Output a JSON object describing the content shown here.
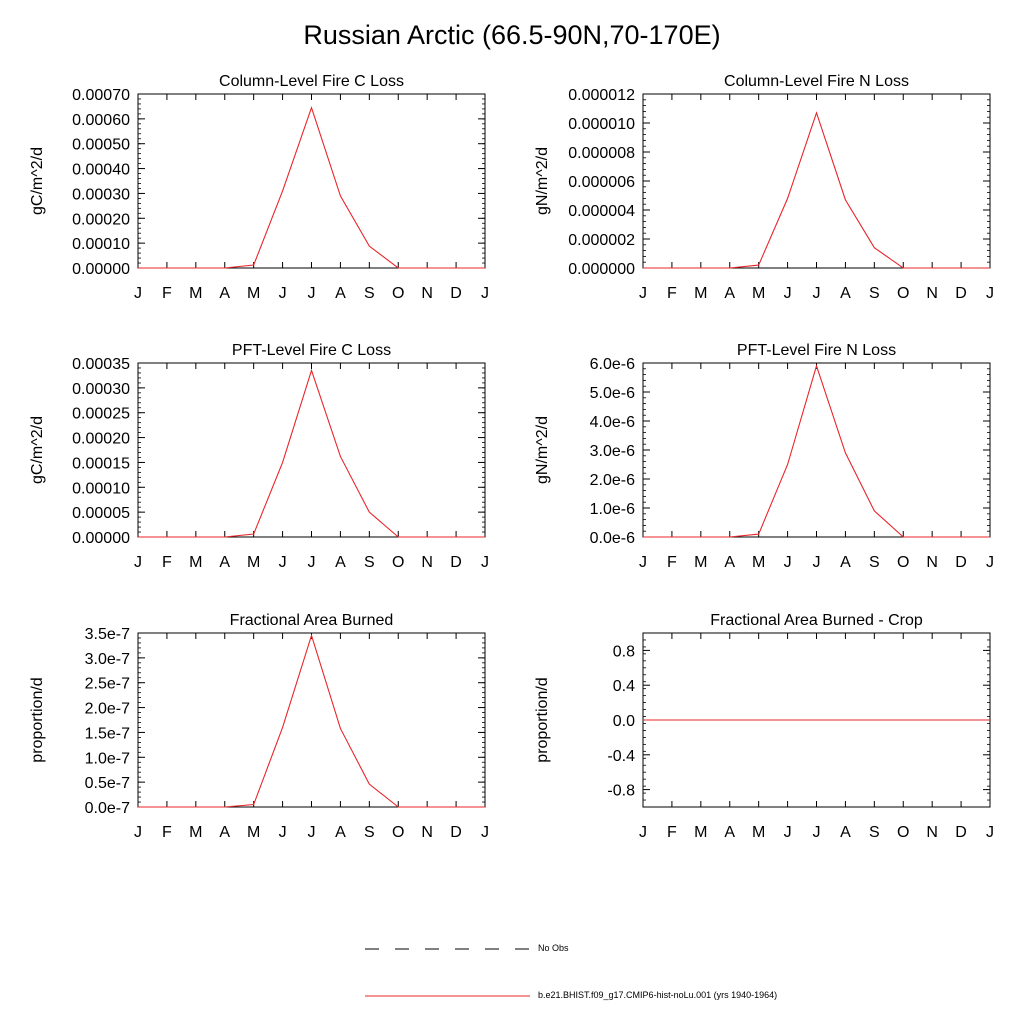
{
  "title": "Russian Arctic (66.5-90N,70-170E)",
  "colors": {
    "series": "#e8262a",
    "axis": "#000000",
    "background": "#ffffff"
  },
  "legend": {
    "entries": [
      {
        "label": "No Obs",
        "style": "dashed",
        "color": "#000000"
      },
      {
        "label": "b.e21.BHIST.f09_g17.CMIP6-hist-noLu.001 (yrs 1940-1964)",
        "style": "solid",
        "color": "#e8262a"
      }
    ]
  },
  "chart_data": [
    {
      "type": "line",
      "title": "Column-Level Fire C Loss",
      "ylabel": "gC/m^2/d",
      "categories": [
        "J",
        "F",
        "M",
        "A",
        "M",
        "J",
        "J",
        "A",
        "S",
        "O",
        "N",
        "D",
        "J"
      ],
      "ylim": [
        0,
        0.0007
      ],
      "yticks": [
        0,
        0.0001,
        0.0002,
        0.0003,
        0.0004,
        0.0005,
        0.0006,
        0.0007
      ],
      "ytick_labels": [
        "0.00000",
        "0.00010",
        "0.00020",
        "0.00030",
        "0.00040",
        "0.00050",
        "0.00060",
        "0.00070"
      ],
      "series": [
        {
          "name": "b.e21.BHIST.f09_g17.CMIP6-hist-noLu.001 (yrs 1940-1964)",
          "values": [
            0,
            0,
            0,
            0,
            1.2e-05,
            0.00031,
            0.000645,
            0.00029,
            8.8e-05,
            0,
            0,
            0,
            0
          ]
        }
      ]
    },
    {
      "type": "line",
      "title": "Column-Level Fire N Loss",
      "ylabel": "gN/m^2/d",
      "categories": [
        "J",
        "F",
        "M",
        "A",
        "M",
        "J",
        "J",
        "A",
        "S",
        "O",
        "N",
        "D",
        "J"
      ],
      "ylim": [
        0,
        1.2e-05
      ],
      "yticks": [
        0,
        2e-06,
        4e-06,
        6e-06,
        8e-06,
        1e-05,
        1.2e-05
      ],
      "ytick_labels": [
        "0.000000",
        "0.000002",
        "0.000004",
        "0.000006",
        "0.000008",
        "0.000010",
        "0.000012"
      ],
      "series": [
        {
          "name": "b.e21.BHIST.f09_g17.CMIP6-hist-noLu.001 (yrs 1940-1964)",
          "values": [
            0,
            0,
            0,
            0,
            2e-07,
            4.8e-06,
            1.07e-05,
            4.7e-06,
            1.4e-06,
            0,
            0,
            0,
            0
          ]
        }
      ]
    },
    {
      "type": "line",
      "title": "PFT-Level Fire C Loss",
      "ylabel": "gC/m^2/d",
      "categories": [
        "J",
        "F",
        "M",
        "A",
        "M",
        "J",
        "J",
        "A",
        "S",
        "O",
        "N",
        "D",
        "J"
      ],
      "ylim": [
        0,
        0.00035
      ],
      "yticks": [
        0,
        5e-05,
        0.0001,
        0.00015,
        0.0002,
        0.00025,
        0.0003,
        0.00035
      ],
      "ytick_labels": [
        "0.00000",
        "0.00005",
        "0.00010",
        "0.00015",
        "0.00020",
        "0.00025",
        "0.00030",
        "0.00035"
      ],
      "series": [
        {
          "name": "b.e21.BHIST.f09_g17.CMIP6-hist-noLu.001 (yrs 1940-1964)",
          "values": [
            0,
            0,
            0,
            0,
            6e-06,
            0.00015,
            0.000335,
            0.000162,
            5e-05,
            0,
            0,
            0,
            0
          ]
        }
      ]
    },
    {
      "type": "line",
      "title": "PFT-Level Fire N Loss",
      "ylabel": "gN/m^2/d",
      "categories": [
        "J",
        "F",
        "M",
        "A",
        "M",
        "J",
        "J",
        "A",
        "S",
        "O",
        "N",
        "D",
        "J"
      ],
      "ylim": [
        0,
        6e-06
      ],
      "yticks": [
        0,
        1e-06,
        2e-06,
        3e-06,
        4e-06,
        5e-06,
        6e-06
      ],
      "ytick_labels": [
        "0.0e-6",
        "1.0e-6",
        "2.0e-6",
        "3.0e-6",
        "4.0e-6",
        "5.0e-6",
        "6.0e-6"
      ],
      "series": [
        {
          "name": "b.e21.BHIST.f09_g17.CMIP6-hist-noLu.001 (yrs 1940-1964)",
          "values": [
            0,
            0,
            0,
            0,
            1e-07,
            2.5e-06,
            5.9e-06,
            2.9e-06,
            9e-07,
            0,
            0,
            0,
            0
          ]
        }
      ]
    },
    {
      "type": "line",
      "title": "Fractional Area Burned",
      "ylabel": "proportion/d",
      "categories": [
        "J",
        "F",
        "M",
        "A",
        "M",
        "J",
        "J",
        "A",
        "S",
        "O",
        "N",
        "D",
        "J"
      ],
      "ylim": [
        0,
        3.5e-07
      ],
      "yticks": [
        0,
        5e-08,
        1e-07,
        1.5e-07,
        2e-07,
        2.5e-07,
        3e-07,
        3.5e-07
      ],
      "ytick_labels": [
        "0.0e-7",
        "0.5e-7",
        "1.0e-7",
        "1.5e-7",
        "2.0e-7",
        "2.5e-7",
        "3.0e-7",
        "3.5e-7"
      ],
      "series": [
        {
          "name": "b.e21.BHIST.f09_g17.CMIP6-hist-noLu.001 (yrs 1940-1964)",
          "values": [
            0,
            0,
            0,
            0,
            5e-09,
            1.6e-07,
            3.45e-07,
            1.58e-07,
            4.6e-08,
            0,
            0,
            0,
            0
          ]
        }
      ]
    },
    {
      "type": "line",
      "title": "Fractional Area Burned - Crop",
      "ylabel": "proportion/d",
      "categories": [
        "J",
        "F",
        "M",
        "A",
        "M",
        "J",
        "J",
        "A",
        "S",
        "O",
        "N",
        "D",
        "J"
      ],
      "ylim": [
        -1.0,
        1.0
      ],
      "yticks": [
        -0.8,
        -0.4,
        0.0,
        0.4,
        0.8
      ],
      "ytick_labels": [
        "-0.8",
        "-0.4",
        "0.0",
        "0.4",
        "0.8"
      ],
      "series": [
        {
          "name": "b.e21.BHIST.f09_g17.CMIP6-hist-noLu.001 (yrs 1940-1964)",
          "values": [
            0,
            0,
            0,
            0,
            0,
            0,
            0,
            0,
            0,
            0,
            0,
            0,
            0
          ]
        }
      ]
    }
  ]
}
